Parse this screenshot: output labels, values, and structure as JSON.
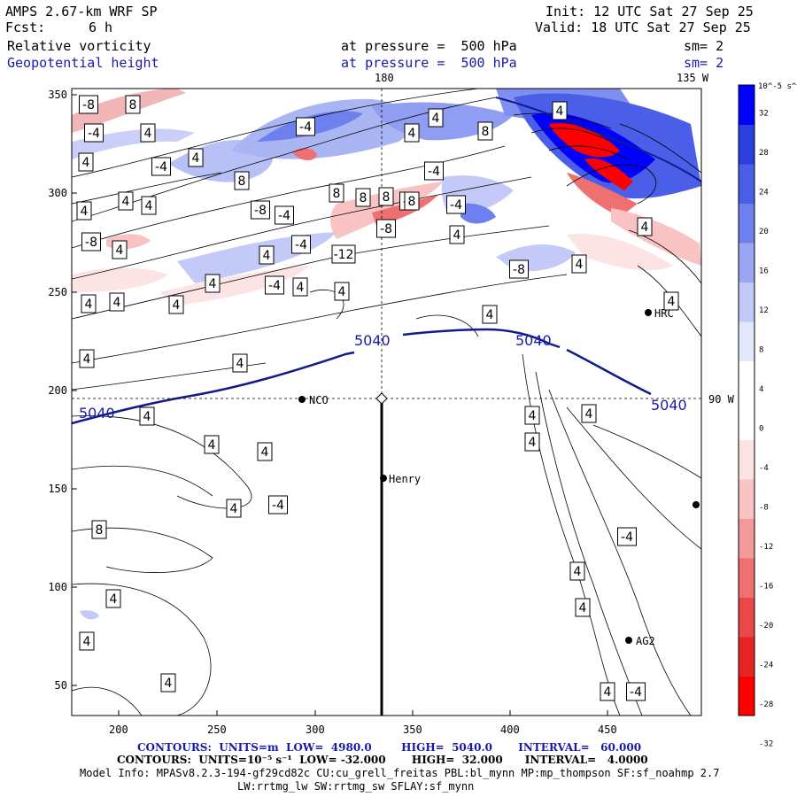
{
  "header": {
    "model": "AMPS 2.67-km WRF SP",
    "fcst_label": "Fcst:",
    "fcst_value": "6 h",
    "init": "Init: 12 UTC Sat 27 Sep 25",
    "valid": "Valid: 18 UTC Sat 27 Sep 25",
    "field1": "Relative vorticity",
    "field2": "Geopotential height",
    "pressure1": "at pressure =  500 hPa",
    "pressure2": "at pressure =  500 hPa",
    "sm1": "sm= 2",
    "sm2": "sm= 2"
  },
  "map": {
    "meridian_180": "180",
    "meridian_135w": "135 W",
    "lat_90w": "90 W",
    "x_ticks": [
      "200",
      "250",
      "300",
      "350",
      "400",
      "450"
    ],
    "y_ticks": [
      "350",
      "300",
      "250",
      "200",
      "150",
      "100",
      "50"
    ],
    "stations": [
      {
        "name": "HRC"
      },
      {
        "name": "NCO"
      },
      {
        "name": "Henry"
      },
      {
        "name": "AG2"
      }
    ],
    "height_labels": [
      "5040",
      "5040",
      "5040",
      "5040"
    ],
    "vorticity_labels": [
      "-8",
      "8",
      "-4",
      "4",
      "4",
      "-4",
      "4",
      "-4",
      "8",
      "4",
      "4",
      "8",
      "8",
      "4",
      "4",
      "4",
      "-8",
      "-4",
      "8",
      "-4",
      "-4",
      "-4",
      "4",
      "-8",
      "8",
      "4",
      "-4",
      "-12",
      "4",
      "-8",
      "-8",
      "4",
      "4",
      "4",
      "-4",
      "4",
      "4",
      "4",
      "4",
      "4",
      "4",
      "4",
      "4",
      "4",
      "4",
      "4",
      "4",
      "4",
      "4",
      "4",
      "4",
      "-4",
      "8",
      "4",
      "4",
      "4",
      "-4",
      "4",
      "4",
      "4",
      "-4",
      "8",
      "4"
    ]
  },
  "colorbar": {
    "unit": "10^-5 s^-1",
    "labels": [
      "32",
      "28",
      "24",
      "20",
      "16",
      "12",
      "8",
      "4",
      "0",
      "-4",
      "-8",
      "-12",
      "-16",
      "-20",
      "-24",
      "-28",
      "-32"
    ],
    "colors": [
      "#0000ff",
      "#2b3fe0",
      "#4a5ee8",
      "#6e7fee",
      "#9aa6f3",
      "#c3caf8",
      "#e4e8fc",
      "#ffffff",
      "#ffffff",
      "#fde4e4",
      "#f9c3c3",
      "#f49a9a",
      "#ef7070",
      "#ea4848",
      "#e62424",
      "#ff0000"
    ]
  },
  "footer": {
    "contours1": "CONTOURS:  UNITS=m  LOW=  4980.0        HIGH=  5040.0       INTERVAL=   60.000",
    "contours2": "CONTOURS:  UNITS=10⁻⁵ s⁻¹  LOW= -32.000       HIGH=  32.000      INTERVAL=   4.0000",
    "model_info": "Model Info: MPASv8.2.3-194-gf29cd82c CU:cu_grell_freitas PBL:bl_mynn MP:mp_thompson SF:sf_noahmp 2.7",
    "model_info2": "LW:rrtmg_lw SW:rrtmg_sw SFLAY:sf_mynn"
  }
}
